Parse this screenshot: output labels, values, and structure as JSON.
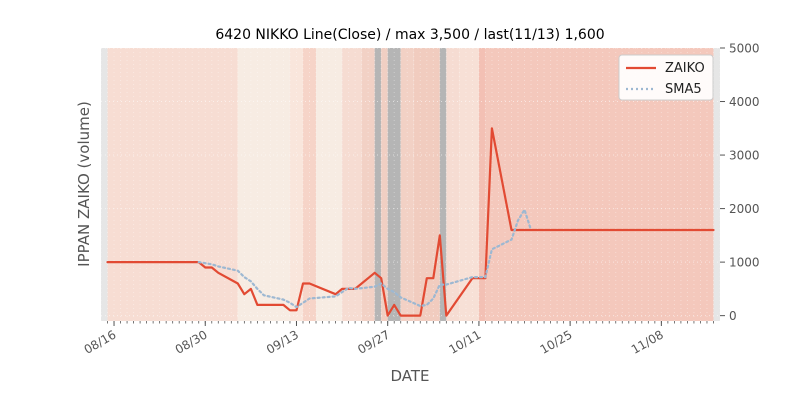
{
  "chart_data": {
    "type": "line",
    "title": "6420 NIKKO Line(Close) / max 3,500 / last(11/13) 1,600",
    "xlabel": "DATE",
    "ylabel": "IPPAN ZAIKO (volume)",
    "ylim": [
      -100,
      5000
    ],
    "y_ticks": [
      "0",
      "1000",
      "2000",
      "3000",
      "4000",
      "5000"
    ],
    "x_ticks": [
      {
        "date": "2023-08-16",
        "label": "08/16"
      },
      {
        "date": "2023-08-30",
        "label": "08/30"
      },
      {
        "date": "2023-09-13",
        "label": "09/13"
      },
      {
        "date": "2023-09-27",
        "label": "09/27"
      },
      {
        "date": "2023-10-11",
        "label": "10/11"
      },
      {
        "date": "2023-10-25",
        "label": "10/25"
      },
      {
        "date": "2023-11-08",
        "label": "11/08"
      }
    ],
    "xlim": [
      "2023-08-14",
      "2023-11-17"
    ],
    "y_axis_position": "right",
    "grid": true,
    "legend_position": "top-right",
    "series": [
      {
        "name": "ZAIKO",
        "color": "#e24a33",
        "style": "solid",
        "points": [
          [
            "2023-08-15",
            1000
          ],
          [
            "2023-08-16",
            1000
          ],
          [
            "2023-08-17",
            1000
          ],
          [
            "2023-08-18",
            1000
          ],
          [
            "2023-08-21",
            1000
          ],
          [
            "2023-08-22",
            1000
          ],
          [
            "2023-08-23",
            1000
          ],
          [
            "2023-08-24",
            1000
          ],
          [
            "2023-08-25",
            1000
          ],
          [
            "2023-08-28",
            1000
          ],
          [
            "2023-08-29",
            1000
          ],
          [
            "2023-08-30",
            900
          ],
          [
            "2023-08-31",
            900
          ],
          [
            "2023-09-01",
            800
          ],
          [
            "2023-09-04",
            600
          ],
          [
            "2023-09-05",
            400
          ],
          [
            "2023-09-06",
            500
          ],
          [
            "2023-09-07",
            200
          ],
          [
            "2023-09-08",
            200
          ],
          [
            "2023-09-11",
            200
          ],
          [
            "2023-09-12",
            100
          ],
          [
            "2023-09-13",
            100
          ],
          [
            "2023-09-14",
            600
          ],
          [
            "2023-09-15",
            600
          ],
          [
            "2023-09-19",
            400
          ],
          [
            "2023-09-20",
            500
          ],
          [
            "2023-09-21",
            500
          ],
          [
            "2023-09-22",
            500
          ],
          [
            "2023-09-25",
            800
          ],
          [
            "2023-09-26",
            700
          ],
          [
            "2023-09-27",
            0
          ],
          [
            "2023-09-28",
            200
          ],
          [
            "2023-09-29",
            0
          ],
          [
            "2023-10-02",
            0
          ],
          [
            "2023-10-03",
            700
          ],
          [
            "2023-10-04",
            700
          ],
          [
            "2023-10-05",
            1500
          ],
          [
            "2023-10-06",
            0
          ],
          [
            "2023-10-10",
            700
          ],
          [
            "2023-10-11",
            700
          ],
          [
            "2023-10-12",
            700
          ],
          [
            "2023-10-13",
            3500
          ],
          [
            "2023-10-16",
            1600
          ],
          [
            "2023-10-17",
            1600
          ],
          [
            "2023-10-31",
            1600
          ],
          [
            "2023-11-13",
            1600
          ],
          [
            "2023-11-16",
            1600
          ]
        ]
      },
      {
        "name": "SMA5",
        "color": "#9db8d2",
        "style": "dotted",
        "points": [
          [
            "2023-08-29",
            1000
          ],
          [
            "2023-08-30",
            980
          ],
          [
            "2023-08-31",
            960
          ],
          [
            "2023-09-01",
            920
          ],
          [
            "2023-09-04",
            840
          ],
          [
            "2023-09-05",
            720
          ],
          [
            "2023-09-06",
            640
          ],
          [
            "2023-09-07",
            500
          ],
          [
            "2023-09-08",
            380
          ],
          [
            "2023-09-11",
            300
          ],
          [
            "2023-09-12",
            240
          ],
          [
            "2023-09-13",
            160
          ],
          [
            "2023-09-14",
            240
          ],
          [
            "2023-09-15",
            320
          ],
          [
            "2023-09-19",
            360
          ],
          [
            "2023-09-20",
            440
          ],
          [
            "2023-09-21",
            520
          ],
          [
            "2023-09-22",
            500
          ],
          [
            "2023-09-25",
            540
          ],
          [
            "2023-09-26",
            600
          ],
          [
            "2023-09-27",
            500
          ],
          [
            "2023-09-28",
            440
          ],
          [
            "2023-09-29",
            340
          ],
          [
            "2023-10-02",
            180
          ],
          [
            "2023-10-03",
            200
          ],
          [
            "2023-10-04",
            320
          ],
          [
            "2023-10-05",
            580
          ],
          [
            "2023-10-06",
            580
          ],
          [
            "2023-10-10",
            720
          ],
          [
            "2023-10-11",
            720
          ],
          [
            "2023-10-12",
            720
          ],
          [
            "2023-10-13",
            1240
          ],
          [
            "2023-10-16",
            1420
          ],
          [
            "2023-10-17",
            1780
          ],
          [
            "2023-10-18",
            1980
          ],
          [
            "2023-10-19",
            1600
          ]
        ]
      }
    ],
    "background_bands": [
      {
        "start": "2023-08-14",
        "end": "2023-08-15",
        "color": "#e6e6e6"
      },
      {
        "start": "2023-08-15",
        "end": "2023-09-04",
        "color": "#f7ddd3"
      },
      {
        "start": "2023-09-04",
        "end": "2023-09-12",
        "color": "#f7ece3"
      },
      {
        "start": "2023-09-12",
        "end": "2023-09-14",
        "color": "#f9e6dc"
      },
      {
        "start": "2023-09-14",
        "end": "2023-09-16",
        "color": "#f6d4c8"
      },
      {
        "start": "2023-09-16",
        "end": "2023-09-20",
        "color": "#f7ece3"
      },
      {
        "start": "2023-09-20",
        "end": "2023-09-23",
        "color": "#f6dcd2"
      },
      {
        "start": "2023-09-23",
        "end": "2023-09-25",
        "color": "#f2d1c5"
      },
      {
        "start": "2023-09-25",
        "end": "2023-09-26",
        "color": "#b5b5b5"
      },
      {
        "start": "2023-09-26",
        "end": "2023-09-27",
        "color": "#f0cfc3"
      },
      {
        "start": "2023-09-27",
        "end": "2023-09-29",
        "color": "#b5b5b5"
      },
      {
        "start": "2023-09-29",
        "end": "2023-10-01",
        "color": "#f2d1c5"
      },
      {
        "start": "2023-10-01",
        "end": "2023-10-05",
        "color": "#f1ccbf"
      },
      {
        "start": "2023-10-05",
        "end": "2023-10-06",
        "color": "#b5b5b5"
      },
      {
        "start": "2023-10-06",
        "end": "2023-10-08",
        "color": "#f6dcd2"
      },
      {
        "start": "2023-10-08",
        "end": "2023-10-11",
        "color": "#f7e0d6"
      },
      {
        "start": "2023-10-11",
        "end": "2023-10-12",
        "color": "#f3c0b4"
      },
      {
        "start": "2023-10-12",
        "end": "2023-11-16",
        "color": "#f4c8bc"
      },
      {
        "start": "2023-11-16",
        "end": "2023-11-17",
        "color": "#e6e6e6"
      }
    ]
  }
}
